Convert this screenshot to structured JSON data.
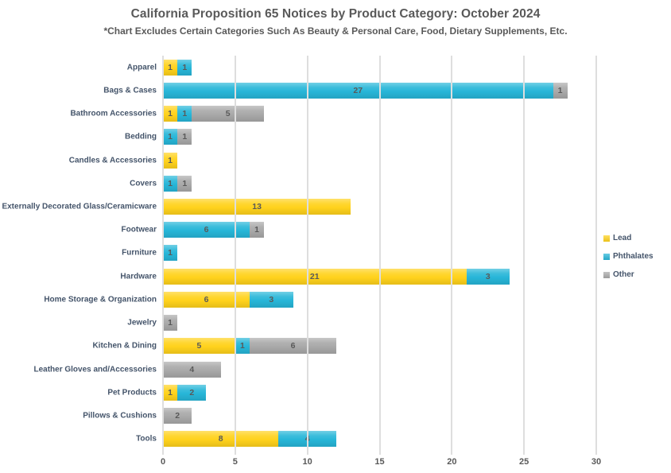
{
  "title": "California Proposition 65 Notices by Product Category: October 2024",
  "subtitle": "*Chart Excludes Certain Categories Such As Beauty & Personal Care, Food, Dietary Supplements, Etc.",
  "colors": {
    "lead": "#FFD21C",
    "phthalates": "#27B6D8",
    "other": "#A9A9A9",
    "gridline": "#DEDEDE",
    "axis_text": "#595959",
    "category_text": "#44546A"
  },
  "chart_data": {
    "type": "bar",
    "orientation": "horizontal",
    "stacked": true,
    "title": "California Proposition 65 Notices by Product Category: October 2024",
    "subtitle": "*Chart Excludes Certain Categories Such As Beauty & Personal Care, Food, Dietary Supplements, Etc.",
    "xlabel": "",
    "ylabel": "",
    "xlim": [
      0,
      30
    ],
    "xticks": [
      0,
      5,
      10,
      15,
      20,
      25,
      30
    ],
    "grid": true,
    "legend_position": "right",
    "data_labels": true,
    "categories": [
      "Apparel",
      "Bags & Cases",
      "Bathroom Accessories",
      "Bedding",
      "Candles & Accessories",
      "Covers",
      "Externally Decorated Glass/Ceramicware",
      "Footwear",
      "Furniture",
      "Hardware",
      "Home Storage & Organization",
      "Jewelry",
      "Kitchen & Dining",
      "Leather Gloves and/Accessories",
      "Pet Products",
      "Pillows & Cushions",
      "Tools"
    ],
    "series": [
      {
        "name": "Lead",
        "color": "#FFD21C",
        "values": [
          1,
          0,
          1,
          0,
          1,
          0,
          13,
          0,
          0,
          21,
          6,
          0,
          5,
          0,
          1,
          0,
          8
        ]
      },
      {
        "name": "Phthalates",
        "color": "#27B6D8",
        "values": [
          1,
          27,
          1,
          1,
          0,
          1,
          0,
          6,
          1,
          3,
          3,
          0,
          1,
          0,
          2,
          0,
          4
        ]
      },
      {
        "name": "Other",
        "color": "#A9A9A9",
        "values": [
          0,
          1,
          5,
          1,
          0,
          1,
          0,
          1,
          0,
          0,
          0,
          1,
          6,
          4,
          0,
          2,
          0
        ]
      }
    ]
  }
}
